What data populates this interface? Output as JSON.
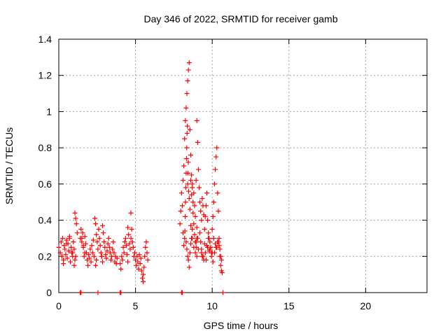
{
  "chart_data": {
    "type": "scatter",
    "title": "Day 346 of 2022, SRMTID for receiver gamb",
    "xlabel": "GPS time / hours",
    "ylabel": "SRMTID / TECUs",
    "xlim": [
      0,
      24
    ],
    "ylim": [
      0,
      1.4
    ],
    "xticks": [
      0,
      5,
      10,
      15,
      20
    ],
    "yticks": [
      0,
      0.2,
      0.4,
      0.6,
      0.8,
      1,
      1.2,
      1.4
    ],
    "xtick_labels": [
      "0",
      "5",
      "10",
      "15",
      "20"
    ],
    "ytick_labels": [
      "0",
      "0.2",
      "0.4",
      "0.6",
      "0.8",
      "1",
      "1.2",
      "1.4"
    ],
    "grid": true,
    "marker": "+",
    "color": "#ff0000",
    "series": [
      {
        "name": "SRMTID",
        "x": [
          0.0,
          0.1,
          0.15,
          0.2,
          0.25,
          0.3,
          0.35,
          0.4,
          0.45,
          0.5,
          0.55,
          0.6,
          0.65,
          0.7,
          0.75,
          0.8,
          0.85,
          0.9,
          0.95,
          1.0,
          1.05,
          1.1,
          1.15,
          1.2,
          1.0,
          1.05,
          1.1,
          0.3,
          0.5,
          0.7,
          0.9,
          1.4,
          1.45,
          1.5,
          1.55,
          1.6,
          1.65,
          1.7,
          1.75,
          1.8,
          1.85,
          1.9,
          1.95,
          2.0,
          2.05,
          2.1,
          2.15,
          2.2,
          2.25,
          2.3,
          2.35,
          2.4,
          2.45,
          2.5,
          2.55,
          2.6,
          2.65,
          2.7,
          2.75,
          2.8,
          2.85,
          2.9,
          2.95,
          3.0,
          3.05,
          3.1,
          3.15,
          3.2,
          3.25,
          3.3,
          3.35,
          3.4,
          3.45,
          3.5,
          3.55,
          3.6,
          3.65,
          3.7,
          3.75,
          3.8,
          2.4,
          2.45,
          2.8,
          2.85,
          1.5,
          1.6,
          1.7,
          4.0,
          4.05,
          4.1,
          4.15,
          4.2,
          4.25,
          4.3,
          4.35,
          4.4,
          4.45,
          4.5,
          4.55,
          4.6,
          4.65,
          4.7,
          4.75,
          4.8,
          4.85,
          4.9,
          4.95,
          5.0,
          5.05,
          5.1,
          5.15,
          5.2,
          5.25,
          5.3,
          5.35,
          5.4,
          5.45,
          5.5,
          5.55,
          5.6,
          5.65,
          5.7,
          5.75,
          5.8,
          4.7,
          4.5,
          5.5,
          7.9,
          7.95,
          8.0,
          8.05,
          8.1,
          8.15,
          8.2,
          8.25,
          8.3,
          8.35,
          8.4,
          8.45,
          8.5,
          8.55,
          8.6,
          8.65,
          8.7,
          8.75,
          8.8,
          8.85,
          8.9,
          8.95,
          9.0,
          9.05,
          9.1,
          9.15,
          9.2,
          9.25,
          9.3,
          9.35,
          9.4,
          9.45,
          9.5,
          9.55,
          9.6,
          9.65,
          9.7,
          9.75,
          9.8,
          9.85,
          9.9,
          9.95,
          10.0,
          10.05,
          10.1,
          10.15,
          10.2,
          10.25,
          10.3,
          10.35,
          10.4,
          10.45,
          10.5,
          10.55,
          10.6,
          10.65,
          8.2,
          8.22,
          8.24,
          8.26,
          8.28,
          8.3,
          8.32,
          8.34,
          8.36,
          8.38,
          8.4,
          8.42,
          8.44,
          8.46,
          8.5,
          8.55,
          8.6,
          8.65,
          8.7,
          8.75,
          8.8,
          8.85,
          8.9,
          8.95,
          9.0,
          9.0,
          9.05,
          9.1,
          9.3,
          9.4,
          9.5,
          9.6,
          9.7,
          9.8,
          10.0,
          10.1,
          10.2,
          10.3,
          10.4,
          10.5,
          8.1,
          8.15,
          8.6,
          8.7,
          8.3,
          8.35,
          8.4,
          8.45,
          8.5,
          8.55,
          8.6,
          8.65,
          8.7,
          8.8,
          8.9,
          8.95,
          9.0,
          9.2,
          9.25,
          9.3,
          9.35,
          9.45,
          9.55,
          9.65,
          9.75,
          9.85,
          9.95,
          10.05,
          10.15,
          10.25,
          10.35,
          10.45,
          10.55,
          10.6,
          1.4,
          1.45,
          4.0,
          4.05,
          8.0,
          8.05,
          2.55,
          10.7
        ],
        "y": [
          0.25,
          0.22,
          0.28,
          0.2,
          0.3,
          0.18,
          0.26,
          0.24,
          0.21,
          0.29,
          0.19,
          0.27,
          0.23,
          0.31,
          0.17,
          0.25,
          0.22,
          0.2,
          0.28,
          0.24,
          0.44,
          0.41,
          0.38,
          0.33,
          0.15,
          0.18,
          0.2,
          0.16,
          0.27,
          0.3,
          0.22,
          0.3,
          0.35,
          0.28,
          0.33,
          0.25,
          0.2,
          0.31,
          0.27,
          0.22,
          0.18,
          0.15,
          0.21,
          0.19,
          0.24,
          0.17,
          0.26,
          0.22,
          0.29,
          0.2,
          0.41,
          0.38,
          0.32,
          0.28,
          0.24,
          0.35,
          0.3,
          0.26,
          0.22,
          0.2,
          0.37,
          0.33,
          0.28,
          0.25,
          0.21,
          0.19,
          0.23,
          0.27,
          0.3,
          0.25,
          0.22,
          0.18,
          0.2,
          0.24,
          0.28,
          0.22,
          0.17,
          0.2,
          0.16,
          0.19,
          0.15,
          0.18,
          0.2,
          0.17,
          0.3,
          0.26,
          0.22,
          0.16,
          0.13,
          0.2,
          0.18,
          0.25,
          0.22,
          0.28,
          0.3,
          0.26,
          0.21,
          0.17,
          0.32,
          0.27,
          0.24,
          0.3,
          0.35,
          0.28,
          0.25,
          0.2,
          0.22,
          0.18,
          0.15,
          0.2,
          0.17,
          0.13,
          0.21,
          0.16,
          0.19,
          0.12,
          0.08,
          0.06,
          0.14,
          0.2,
          0.25,
          0.28,
          0.22,
          0.18,
          0.44,
          0.36,
          0.1,
          0.38,
          0.45,
          0.55,
          0.48,
          0.62,
          0.7,
          0.85,
          0.95,
          1.02,
          1.1,
          1.17,
          1.23,
          1.27,
          0.9,
          0.76,
          0.65,
          0.58,
          0.5,
          0.55,
          0.48,
          0.42,
          0.62,
          0.95,
          0.83,
          0.68,
          0.58,
          0.5,
          0.45,
          0.4,
          0.52,
          0.48,
          0.43,
          0.35,
          0.42,
          0.48,
          0.55,
          0.4,
          0.33,
          0.3,
          0.28,
          0.25,
          0.22,
          0.35,
          0.42,
          0.5,
          0.6,
          0.68,
          0.75,
          0.8,
          0.55,
          0.45,
          0.3,
          0.2,
          0.15,
          0.12,
          0.11,
          0.3,
          0.34,
          0.42,
          0.5,
          0.58,
          0.66,
          0.74,
          0.8,
          0.88,
          0.92,
          0.6,
          0.66,
          0.72,
          0.56,
          0.52,
          0.46,
          0.62,
          0.54,
          0.6,
          0.44,
          0.38,
          0.32,
          0.28,
          0.25,
          0.2,
          0.36,
          0.3,
          0.24,
          0.22,
          0.2,
          0.27,
          0.18,
          0.25,
          0.23,
          0.22,
          0.3,
          0.27,
          0.25,
          0.28,
          0.24,
          0.33,
          0.26,
          0.37,
          0.3,
          0.28,
          0.24,
          0.2,
          0.18,
          0.14,
          0.22,
          0.27,
          0.3,
          0.35,
          0.25,
          0.22,
          0.28,
          0.3,
          0.33,
          0.28,
          0.24,
          0.2,
          0.18,
          0.22,
          0.26,
          0.3,
          0.24,
          0.2,
          0.17,
          0.22,
          0.25,
          0.28,
          0.26,
          0.2,
          0.18,
          0.0,
          0.0,
          0.0,
          0.0,
          0.0,
          0.0,
          0.0,
          0.0
        ]
      }
    ]
  }
}
